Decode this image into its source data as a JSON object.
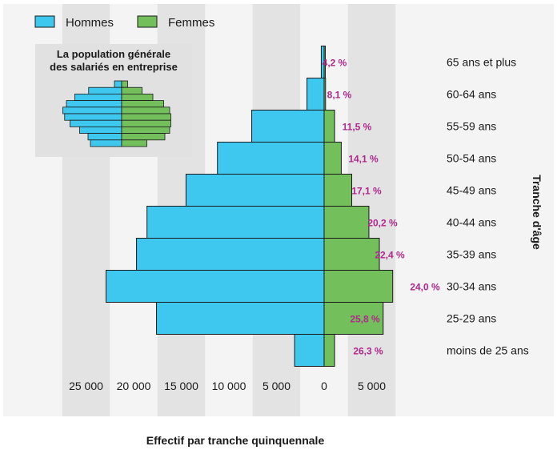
{
  "chart_data": {
    "type": "bar",
    "orientation": "horizontal-population-pyramid",
    "categories": [
      "moins de 25 ans",
      "25-29 ans",
      "30-34 ans",
      "35-39 ans",
      "40-44 ans",
      "45-49 ans",
      "50-54 ans",
      "55-59 ans",
      "60-64 ans",
      "65 ans et plus"
    ],
    "series": [
      {
        "name": "Hommes",
        "color": "#3ec7ef",
        "side": "left",
        "values": [
          3100,
          17600,
          22900,
          19700,
          18600,
          14500,
          11200,
          7600,
          1800,
          300
        ]
      },
      {
        "name": "Femmes",
        "color": "#73bf5c",
        "side": "right",
        "values": [
          1100,
          6200,
          7200,
          5800,
          4700,
          2900,
          1800,
          1100,
          150,
          40
        ]
      }
    ],
    "bar_labels": [
      "26,3 %",
      "25,8 %",
      "24,0 %",
      "22,4 %",
      "20,2 %",
      "17,1 %",
      "14,1 %",
      "11,5 %",
      "8,1 %",
      "4,2 %"
    ],
    "bar_label_color": "#b0288c",
    "xlabel": "Effectif par tranche quinquennale",
    "ylabel": "Tranche d'âge",
    "xlim": [
      -25000,
      5000
    ],
    "x_ticks": [
      {
        "value": -25000,
        "label": "25 000"
      },
      {
        "value": -20000,
        "label": "20 000"
      },
      {
        "value": -15000,
        "label": "15 000"
      },
      {
        "value": -10000,
        "label": "10 000"
      },
      {
        "value": -5000,
        "label": "5 000"
      },
      {
        "value": 0,
        "label": "0"
      },
      {
        "value": 5000,
        "label": "5 000"
      }
    ],
    "grid": "alternating vertical bands",
    "legend": {
      "placement": "top-left",
      "items": [
        "Hommes",
        "Femmes"
      ]
    },
    "inset": {
      "title_line1": "La population générale",
      "title_line2": "des salariés en entreprise",
      "hommes": [
        0.52,
        0.56,
        0.7,
        0.86,
        0.95,
        0.98,
        0.92,
        0.78,
        0.55,
        0.12
      ],
      "femmes": [
        0.42,
        0.72,
        0.8,
        0.82,
        0.82,
        0.8,
        0.7,
        0.52,
        0.34,
        0.1
      ]
    }
  }
}
